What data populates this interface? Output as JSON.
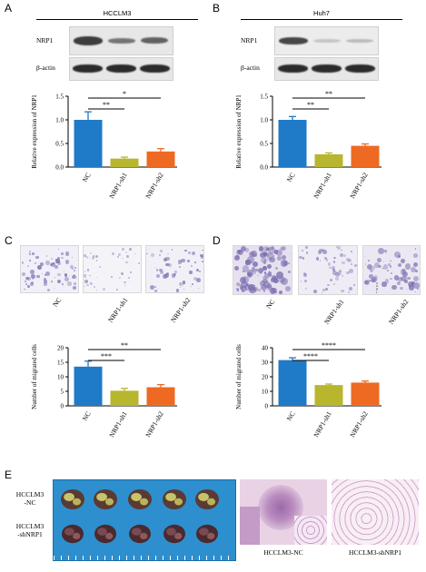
{
  "panels": {
    "a": "A",
    "b": "B",
    "c": "C",
    "d": "D",
    "e": "E"
  },
  "western": {
    "left": {
      "title": "HCCLM3",
      "row1": "NRP1",
      "row2": "β-actin"
    },
    "right": {
      "title": "Huh7",
      "row1": "NRP1",
      "row2": "β-actin"
    }
  },
  "invasion_labels": {
    "left": [
      "NC",
      "NRP1-sh1",
      "NRP1-sh2"
    ],
    "right": [
      "NC",
      "NRP1-sh1",
      "NRP1-sh2"
    ]
  },
  "mice": {
    "row1_line1": "HCCLM3",
    "row1_line2": "-NC",
    "row2_line1": "HCCLM3",
    "row2_line2": "-shNRP1",
    "he_left": "HCCLM3-NC",
    "he_right": "HCCLM3-shNRP1"
  },
  "colors": {
    "nc": "#1f7ac7",
    "sh1": "#b8b62e",
    "sh2": "#ee6a22"
  },
  "chart_data": [
    {
      "panel": "A",
      "type": "bar",
      "categories": [
        "NC",
        "NRP1-sh1",
        "NRP1-sh2"
      ],
      "values": [
        1.0,
        0.18,
        0.33
      ],
      "errors": [
        0.17,
        0.03,
        0.06
      ],
      "ylabel": "Relative expression of NRP1",
      "ylim": [
        0,
        1.5
      ],
      "yticks": [
        "0.0",
        "0.5",
        "1.0",
        "1.5"
      ],
      "sig": [
        {
          "from": 0,
          "to": 1,
          "label": "**"
        },
        {
          "from": 0,
          "to": 2,
          "label": "*"
        }
      ]
    },
    {
      "panel": "B",
      "type": "bar",
      "categories": [
        "NC",
        "NRP1-sh1",
        "NRP1-sh2"
      ],
      "values": [
        1.0,
        0.27,
        0.45
      ],
      "errors": [
        0.07,
        0.03,
        0.04
      ],
      "ylabel": "Relative expression of NRP1",
      "ylim": [
        0,
        1.5
      ],
      "yticks": [
        "0.0",
        "0.5",
        "1.0",
        "1.5"
      ],
      "sig": [
        {
          "from": 0,
          "to": 1,
          "label": "**"
        },
        {
          "from": 0,
          "to": 2,
          "label": "**"
        }
      ]
    },
    {
      "panel": "C",
      "type": "bar",
      "categories": [
        "NC",
        "NRP1-sh1",
        "NRP1-sh2"
      ],
      "values": [
        13.5,
        5.2,
        6.4
      ],
      "errors": [
        1.9,
        0.8,
        0.9
      ],
      "ylabel": "Number of migrated cells",
      "ylim": [
        0,
        20
      ],
      "yticks": [
        "0",
        "5",
        "10",
        "15",
        "20"
      ],
      "sig": [
        {
          "from": 0,
          "to": 1,
          "label": "***"
        },
        {
          "from": 0,
          "to": 2,
          "label": "**"
        }
      ]
    },
    {
      "panel": "D",
      "type": "bar",
      "categories": [
        "NC",
        "NRP1-sh1",
        "NRP1-sh2"
      ],
      "values": [
        31.5,
        14.3,
        16.0
      ],
      "errors": [
        1.6,
        0.7,
        1.1
      ],
      "ylabel": "Number of migrated cells",
      "ylim": [
        0,
        40
      ],
      "yticks": [
        "0",
        "10",
        "20",
        "30",
        "40"
      ],
      "sig": [
        {
          "from": 0,
          "to": 1,
          "label": "****"
        },
        {
          "from": 0,
          "to": 2,
          "label": "****"
        }
      ]
    }
  ]
}
